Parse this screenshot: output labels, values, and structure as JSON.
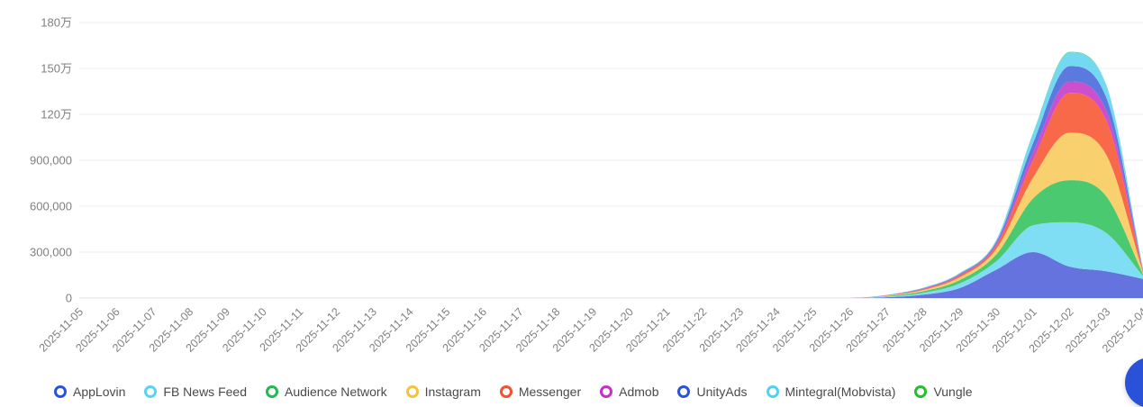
{
  "chart_data": {
    "type": "area",
    "stacked": true,
    "smooth": true,
    "title": "",
    "xlabel": "",
    "ylabel": "",
    "grid": true,
    "legend_position": "bottom",
    "x": [
      "2025-11-05",
      "2025-11-06",
      "2025-11-07",
      "2025-11-08",
      "2025-11-09",
      "2025-11-10",
      "2025-11-11",
      "2025-11-12",
      "2025-11-13",
      "2025-11-14",
      "2025-11-15",
      "2025-11-16",
      "2025-11-17",
      "2025-11-18",
      "2025-11-19",
      "2025-11-20",
      "2025-11-21",
      "2025-11-22",
      "2025-11-23",
      "2025-11-24",
      "2025-11-25",
      "2025-11-26",
      "2025-11-27",
      "2025-11-28",
      "2025-11-29",
      "2025-11-30",
      "2025-12-01",
      "2025-12-02",
      "2025-12-03",
      "2025-12-04"
    ],
    "y_axis": {
      "min": 0,
      "max": 1800000,
      "interval": 300000,
      "tick_labels_top_to_bottom": [
        "180万",
        "150万",
        "120万",
        "900,000",
        "600,000",
        "300,000",
        "0"
      ]
    },
    "series": [
      {
        "name": "AppLovin",
        "legend_color": "#2a52dd",
        "area_color": "#6573de",
        "values": [
          0,
          0,
          0,
          0,
          0,
          0,
          0,
          0,
          0,
          0,
          0,
          0,
          0,
          0,
          0,
          0,
          0,
          0,
          0,
          0,
          0,
          0,
          5000,
          22000,
          65000,
          185000,
          300000,
          205000,
          175000,
          125000
        ]
      },
      {
        "name": "FB News Feed",
        "legend_color": "#55d5f0",
        "area_color": "#7fdef4",
        "values": [
          0,
          0,
          0,
          0,
          0,
          0,
          0,
          0,
          0,
          0,
          0,
          0,
          0,
          0,
          0,
          0,
          0,
          0,
          0,
          0,
          0,
          0,
          4000,
          12000,
          30000,
          55000,
          175000,
          290000,
          250000,
          20000
        ]
      },
      {
        "name": "Audience Network",
        "legend_color": "#21ba55",
        "area_color": "#4bc970",
        "values": [
          0,
          0,
          0,
          0,
          0,
          0,
          0,
          0,
          0,
          0,
          0,
          0,
          0,
          0,
          0,
          0,
          0,
          0,
          0,
          0,
          0,
          0,
          3000,
          10000,
          22000,
          45000,
          175000,
          275000,
          240000,
          12000
        ]
      },
      {
        "name": "Instagram",
        "legend_color": "#f6c23c",
        "area_color": "#f8d06d",
        "values": [
          0,
          0,
          0,
          0,
          0,
          0,
          0,
          0,
          0,
          0,
          0,
          0,
          0,
          0,
          0,
          0,
          0,
          0,
          0,
          0,
          0,
          0,
          3000,
          8000,
          18000,
          35000,
          135000,
          310000,
          270000,
          10000
        ]
      },
      {
        "name": "Messenger",
        "legend_color": "#f4512c",
        "area_color": "#f8694a",
        "values": [
          0,
          0,
          0,
          0,
          0,
          0,
          0,
          0,
          0,
          0,
          0,
          0,
          0,
          0,
          0,
          0,
          0,
          0,
          0,
          0,
          0,
          0,
          2000,
          6000,
          12000,
          25000,
          115000,
          260000,
          225000,
          8000
        ]
      },
      {
        "name": "Admob",
        "legend_color": "#c72fc7",
        "area_color": "#cd4fcd",
        "values": [
          0,
          0,
          0,
          0,
          0,
          0,
          0,
          0,
          0,
          0,
          0,
          0,
          0,
          0,
          0,
          0,
          0,
          0,
          0,
          0,
          0,
          0,
          1000,
          3000,
          5000,
          10000,
          50000,
          75000,
          65000,
          4000
        ]
      },
      {
        "name": "UnityAds",
        "legend_color": "#2a52dd",
        "area_color": "#5b79de",
        "values": [
          0,
          0,
          0,
          0,
          0,
          0,
          0,
          0,
          0,
          0,
          0,
          0,
          0,
          0,
          0,
          0,
          0,
          0,
          0,
          0,
          0,
          0,
          1000,
          3000,
          5000,
          12000,
          60000,
          100000,
          85000,
          5000
        ]
      },
      {
        "name": "Mintegral(Mobvista)",
        "legend_color": "#4fd2f2",
        "area_color": "#72d9f0",
        "values": [
          0,
          0,
          0,
          0,
          0,
          0,
          0,
          0,
          0,
          0,
          0,
          0,
          0,
          0,
          0,
          0,
          0,
          0,
          0,
          0,
          0,
          0,
          1000,
          3000,
          5000,
          12000,
          65000,
          90000,
          80000,
          5000
        ]
      },
      {
        "name": "Vungle",
        "legend_color": "#21c12e",
        "area_color": "#43ca55",
        "values": [
          0,
          0,
          0,
          0,
          0,
          0,
          0,
          0,
          0,
          0,
          0,
          0,
          0,
          0,
          0,
          0,
          0,
          0,
          0,
          0,
          0,
          0,
          0,
          0,
          1000,
          1000,
          2000,
          3000,
          2000,
          1000
        ]
      }
    ],
    "axis_colors": {
      "label": "#808080",
      "gridline": "#ececec",
      "axis_line": "#e0e0e0"
    }
  },
  "fab": {
    "color": "#2a52d8"
  }
}
